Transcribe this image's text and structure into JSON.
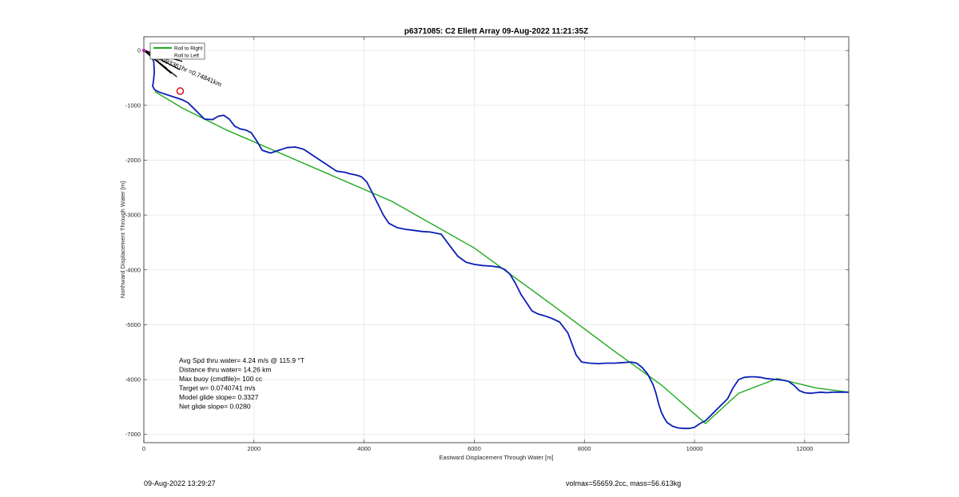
{
  "chart_data": {
    "type": "line",
    "title": "p6371085: C2 Ellett Array 09-Aug-2022 11:21:35Z",
    "xlabel": "Eastward Displacement Through Water [m]",
    "ylabel": "Northward Displacement Through Water [m]",
    "xlim": [
      0,
      12800
    ],
    "ylim": [
      -7150,
      250
    ],
    "xticks": [
      0,
      2000,
      4000,
      6000,
      8000,
      10000,
      12000
    ],
    "yticks": [
      0,
      -1000,
      -2000,
      -3000,
      -4000,
      -5000,
      -6000,
      -7000
    ],
    "grid": true,
    "legend": {
      "placement": "top-left",
      "entries": [
        "Roll to Right",
        "Roll to Left"
      ]
    },
    "colors": {
      "track": "#0b1fb5",
      "straight": "#1faa1f",
      "marker": "#d62020",
      "legend_right": "#1faa1f",
      "legend_left": "#ffffff"
    },
    "series": [
      {
        "name": "track",
        "x": [
          0,
          120,
          180,
          190,
          175,
          160,
          200,
          280,
          400,
          550,
          700,
          800,
          900,
          1000,
          1100,
          1250,
          1350,
          1450,
          1550,
          1650,
          1750,
          1850,
          1950,
          2050,
          2150,
          2300,
          2450,
          2600,
          2750,
          2900,
          3050,
          3200,
          3350,
          3500,
          3650,
          3750,
          3850,
          3950,
          4050,
          4150,
          4250,
          4350,
          4450,
          4600,
          4750,
          4900,
          5050,
          5200,
          5300,
          5400,
          5550,
          5700,
          5850,
          6000,
          6150,
          6300,
          6450,
          6550,
          6650,
          6750,
          6850,
          6950,
          7050,
          7150,
          7250,
          7400,
          7550,
          7700,
          7850,
          7950,
          8100,
          8250,
          8400,
          8550,
          8700,
          8850,
          8950,
          9050,
          9150,
          9250,
          9300,
          9350,
          9400,
          9450,
          9500,
          9600,
          9700,
          9800,
          9900,
          10000,
          10100,
          10200,
          10300,
          10400,
          10500,
          10600,
          10700,
          10800,
          10900,
          11000,
          11100,
          11200,
          11300,
          11400,
          11500,
          11600,
          11700,
          11800,
          11900,
          12000,
          12100,
          12200,
          12300,
          12400,
          12500,
          12600,
          12700,
          12800
        ],
        "y": [
          0,
          -80,
          -200,
          -400,
          -550,
          -650,
          -720,
          -760,
          -800,
          -850,
          -900,
          -950,
          -1050,
          -1150,
          -1250,
          -1260,
          -1200,
          -1180,
          -1250,
          -1380,
          -1430,
          -1450,
          -1500,
          -1650,
          -1820,
          -1870,
          -1820,
          -1770,
          -1760,
          -1800,
          -1900,
          -2000,
          -2100,
          -2200,
          -2220,
          -2250,
          -2270,
          -2300,
          -2400,
          -2600,
          -2800,
          -3000,
          -3150,
          -3230,
          -3260,
          -3280,
          -3300,
          -3310,
          -3330,
          -3350,
          -3550,
          -3750,
          -3860,
          -3900,
          -3920,
          -3930,
          -3950,
          -3990,
          -4080,
          -4250,
          -4450,
          -4600,
          -4750,
          -4800,
          -4830,
          -4880,
          -4950,
          -5150,
          -5550,
          -5680,
          -5700,
          -5710,
          -5700,
          -5700,
          -5690,
          -5680,
          -5700,
          -5780,
          -5900,
          -6100,
          -6250,
          -6450,
          -6600,
          -6700,
          -6780,
          -6850,
          -6880,
          -6890,
          -6890,
          -6870,
          -6800,
          -6750,
          -6650,
          -6550,
          -6450,
          -6350,
          -6150,
          -6000,
          -5960,
          -5950,
          -5950,
          -5960,
          -5980,
          -5990,
          -6000,
          -6010,
          -6030,
          -6100,
          -6200,
          -6240,
          -6250,
          -6240,
          -6230,
          -6240,
          -6230,
          -6230,
          -6230,
          -6230
        ]
      },
      {
        "name": "straight",
        "x": [
          200,
          700,
          1500,
          3000,
          4500,
          6000,
          7500,
          8500,
          9400,
          10200,
          10800,
          11500,
          12200,
          12800
        ],
        "y": [
          -750,
          -1050,
          -1450,
          -2100,
          -2750,
          -3600,
          -4700,
          -5450,
          -6100,
          -6800,
          -6250,
          -5980,
          -6150,
          -6230
        ]
      }
    ],
    "marker": {
      "x": 660,
      "y": -740
    },
    "rays": [
      {
        "dx": 700,
        "dy": -200
      },
      {
        "dx": 650,
        "dy": -350
      },
      {
        "dx": 600,
        "dy": -480
      },
      {
        "dx": 500,
        "dy": -420
      },
      {
        "dx": 420,
        "dy": -330
      }
    ],
    "rays_text": "in 0.093361hr =0.74841km",
    "stats": [
      "Avg Spd thru water=  4.24 m/s @ 115.9 °T",
      "Distance thru water= 14.26 km",
      "Max buoy (cmdfile)= 100 cc",
      "Target w= 0.0740741 m/s",
      "Model glide slope= 0.3327",
      "Net glide slope= 0.0280"
    ]
  },
  "footer": {
    "left": "09-Aug-2022 13:29:27",
    "right": "volmax=55659.2cc, mass=56.613kg"
  }
}
